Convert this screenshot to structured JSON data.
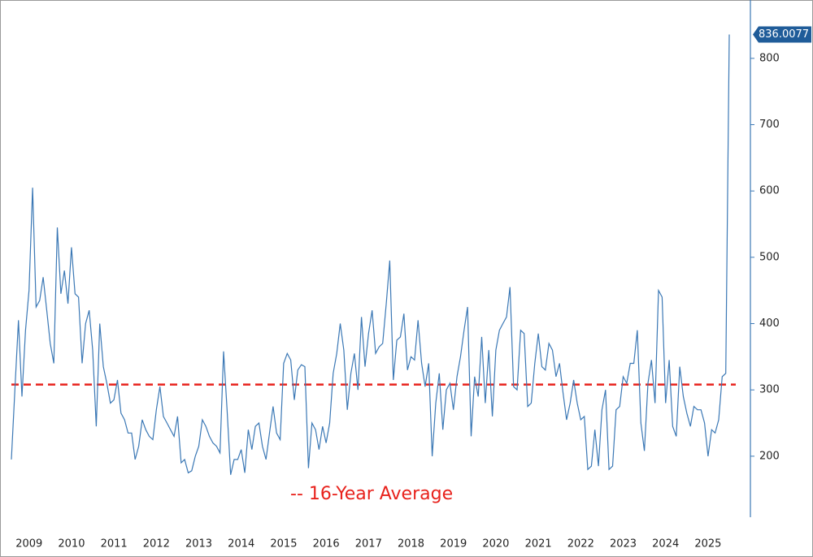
{
  "chart_data": {
    "type": "line",
    "categories": [
      null,
      null,
      null,
      null,
      null,
      "2009",
      null,
      null,
      null,
      null,
      null,
      null,
      null,
      null,
      null,
      null,
      null,
      "2010",
      null,
      null,
      null,
      null,
      null,
      null,
      null,
      null,
      null,
      null,
      null,
      "2011",
      null,
      null,
      null,
      null,
      null,
      null,
      null,
      null,
      null,
      null,
      null,
      "2012",
      null,
      null,
      null,
      null,
      null,
      null,
      null,
      null,
      null,
      null,
      null,
      "2013",
      null,
      null,
      null,
      null,
      null,
      null,
      null,
      null,
      null,
      null,
      null,
      "2014",
      null,
      null,
      null,
      null,
      null,
      null,
      null,
      null,
      null,
      null,
      null,
      "2015",
      null,
      null,
      null,
      null,
      null,
      null,
      null,
      null,
      null,
      null,
      null,
      "2016",
      null,
      null,
      null,
      null,
      null,
      null,
      null,
      null,
      null,
      null,
      null,
      "2017",
      null,
      null,
      null,
      null,
      null,
      null,
      null,
      null,
      null,
      null,
      null,
      "2018",
      null,
      null,
      null,
      null,
      null,
      null,
      null,
      null,
      null,
      null,
      null,
      "2019",
      null,
      null,
      null,
      null,
      null,
      null,
      null,
      null,
      null,
      null,
      null,
      "2020",
      null,
      null,
      null,
      null,
      null,
      null,
      null,
      null,
      null,
      null,
      null,
      "2021",
      null,
      null,
      null,
      null,
      null,
      null,
      null,
      null,
      null,
      null,
      null,
      "2022",
      null,
      null,
      null,
      null,
      null,
      null,
      null,
      null,
      null,
      null,
      null,
      "2023",
      null,
      null,
      null,
      null,
      null,
      null,
      null,
      null,
      null,
      null,
      null,
      "2024",
      null,
      null,
      null,
      null,
      null,
      null,
      null,
      null,
      null,
      null,
      null,
      "2025",
      null,
      null,
      null,
      null,
      null,
      null
    ],
    "values": [
      195,
      300,
      405,
      290,
      390,
      450,
      605,
      425,
      435,
      470,
      420,
      370,
      340,
      545,
      445,
      480,
      430,
      515,
      445,
      440,
      340,
      400,
      420,
      360,
      245,
      400,
      335,
      310,
      280,
      285,
      315,
      265,
      255,
      235,
      235,
      195,
      215,
      255,
      240,
      230,
      225,
      270,
      305,
      260,
      250,
      240,
      230,
      260,
      190,
      195,
      175,
      178,
      200,
      215,
      255,
      245,
      230,
      220,
      215,
      205,
      358,
      270,
      172,
      195,
      195,
      210,
      175,
      240,
      210,
      245,
      250,
      215,
      195,
      235,
      275,
      235,
      225,
      340,
      355,
      345,
      285,
      330,
      338,
      335,
      182,
      250,
      240,
      210,
      245,
      220,
      250,
      325,
      355,
      400,
      360,
      270,
      325,
      355,
      300,
      410,
      335,
      385,
      420,
      355,
      365,
      370,
      430,
      495,
      315,
      375,
      380,
      415,
      330,
      350,
      345,
      405,
      340,
      305,
      340,
      200,
      280,
      325,
      240,
      300,
      310,
      270,
      320,
      350,
      390,
      425,
      230,
      320,
      290,
      380,
      280,
      360,
      260,
      360,
      390,
      400,
      410,
      455,
      305,
      300,
      390,
      385,
      275,
      280,
      340,
      385,
      335,
      330,
      370,
      360,
      320,
      340,
      295,
      255,
      280,
      315,
      280,
      255,
      260,
      180,
      185,
      240,
      185,
      270,
      300,
      180,
      185,
      270,
      275,
      320,
      310,
      340,
      340,
      390,
      250,
      208,
      310,
      345,
      280,
      450,
      440,
      280,
      345,
      245,
      230,
      335,
      290,
      265,
      245,
      275,
      270,
      270,
      250,
      200,
      240,
      235,
      255,
      320,
      325,
      836.0077
    ],
    "color": "#3b78b5",
    "ylim": [
      108,
      888
    ],
    "yticks": [
      200,
      300,
      400,
      500,
      600,
      700,
      800
    ],
    "reference_line": {
      "value": 308,
      "label": "-- 16-Year Average",
      "color": "#e8221c"
    }
  }
}
